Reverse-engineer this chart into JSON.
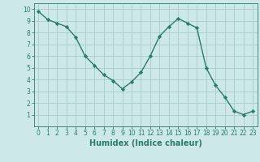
{
  "x": [
    0,
    1,
    2,
    3,
    4,
    5,
    6,
    7,
    8,
    9,
    10,
    11,
    12,
    13,
    14,
    15,
    16,
    17,
    18,
    19,
    20,
    21,
    22,
    23
  ],
  "y": [
    9.8,
    9.1,
    8.8,
    8.5,
    7.6,
    6.0,
    5.2,
    4.4,
    3.9,
    3.2,
    3.8,
    4.6,
    6.0,
    7.7,
    8.5,
    9.2,
    8.8,
    8.4,
    5.0,
    3.5,
    2.5,
    1.3,
    1.0,
    1.3
  ],
  "line_color": "#2d7a6e",
  "marker": "D",
  "markersize": 2.2,
  "linewidth": 1.0,
  "bg_color": "#cce8e8",
  "grid_color": "#aacccc",
  "xlabel": "Humidex (Indice chaleur)",
  "xlim": [
    -0.5,
    23.5
  ],
  "ylim": [
    0,
    10.5
  ],
  "xticks": [
    0,
    1,
    2,
    3,
    4,
    5,
    6,
    7,
    8,
    9,
    10,
    11,
    12,
    13,
    14,
    15,
    16,
    17,
    18,
    19,
    20,
    21,
    22,
    23
  ],
  "yticks": [
    1,
    2,
    3,
    4,
    5,
    6,
    7,
    8,
    9,
    10
  ],
  "tick_color": "#2d7a6e",
  "label_color": "#2d7a6e",
  "xlabel_fontsize": 7,
  "tick_fontsize": 5.5
}
